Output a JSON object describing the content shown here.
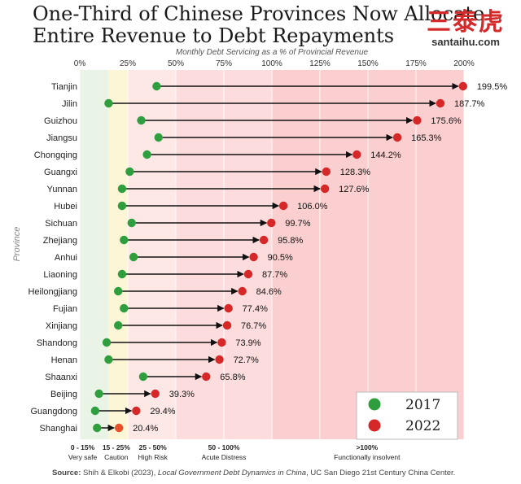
{
  "title_line1": "One-Third of Chinese Provinces Now Allocate",
  "title_line2": "Entire Revenue to Debt Repayments",
  "watermark": {
    "chinese": "三泰虎",
    "site": "santaihu.com"
  },
  "source": {
    "label": "Source:",
    "authors": "Shih & Elkobi (2023),",
    "work": "Local Government Debt Dynamics in China",
    "org": ", UC San Diego 21st Century China Center."
  },
  "chart_data": {
    "type": "dumbbell",
    "xlabel": "Monthly Debt Servicing as a % of Provincial Revenue",
    "ylabel": "Province",
    "xlim": [
      0,
      200
    ],
    "xticks": [
      0,
      25,
      50,
      75,
      100,
      125,
      150,
      175,
      200
    ],
    "xtick_labels": [
      "0%",
      "25%",
      "50%",
      "75%",
      "100%",
      "125%",
      "150%",
      "175%",
      "200%"
    ],
    "colors": {
      "2017": "#2e9e3e",
      "2022": "#d62828",
      "2022_low": "#e8502a"
    },
    "legend": [
      {
        "label": "2017",
        "color": "#2e9e3e"
      },
      {
        "label": "2022",
        "color": "#d62828"
      }
    ],
    "zones": [
      {
        "from": 0,
        "to": 15,
        "color": "#eaf4e6",
        "label_range": "0 - 15%",
        "label_name": "Very safe"
      },
      {
        "from": 15,
        "to": 25,
        "color": "#fdf6d6",
        "label_range": "15 - 25%",
        "label_name": "Caution"
      },
      {
        "from": 25,
        "to": 50,
        "color": "#fde8e6",
        "label_range": "25 - 50%",
        "label_name": "High Risk"
      },
      {
        "from": 50,
        "to": 100,
        "color": "#fcdcdc",
        "label_range": "50 - 100%",
        "label_name": "Acute Distress"
      },
      {
        "from": 100,
        "to": 200,
        "color": "#fbcfcf",
        "label_range": ">100%",
        "label_name": "Functionally insolvent"
      }
    ],
    "categories": [
      "Tianjin",
      "Jilin",
      "Guizhou",
      "Jiangsu",
      "Chongqing",
      "Guangxi",
      "Yunnan",
      "Hubei",
      "Sichuan",
      "Zhejiang",
      "Anhui",
      "Liaoning",
      "Heilongjiang",
      "Fujian",
      "Xinjiang",
      "Shandong",
      "Henan",
      "Shaanxi",
      "Beijing",
      "Guangdong",
      "Shanghai"
    ],
    "series": [
      {
        "name": "2017",
        "values": [
          40,
          15,
          32,
          41,
          35,
          26,
          22,
          22,
          27,
          23,
          28,
          22,
          20,
          23,
          20,
          14,
          15,
          33,
          10,
          8,
          9
        ]
      },
      {
        "name": "2022",
        "values": [
          199.5,
          187.7,
          175.6,
          165.3,
          144.2,
          128.3,
          127.6,
          106.0,
          99.7,
          95.8,
          90.5,
          87.7,
          84.6,
          77.4,
          76.7,
          73.9,
          72.7,
          65.8,
          39.3,
          29.4,
          20.4
        ]
      }
    ],
    "value_labels": [
      "199.5%",
      "187.7%",
      "175.6%",
      "165.3%",
      "144.2%",
      "128.3%",
      "127.6%",
      "106.0%",
      "99.7%",
      "95.8%",
      "90.5%",
      "87.7%",
      "84.6%",
      "77.4%",
      "76.7%",
      "73.9%",
      "72.7%",
      "65.8%",
      "39.3%",
      "29.4%",
      "20.4%"
    ]
  }
}
